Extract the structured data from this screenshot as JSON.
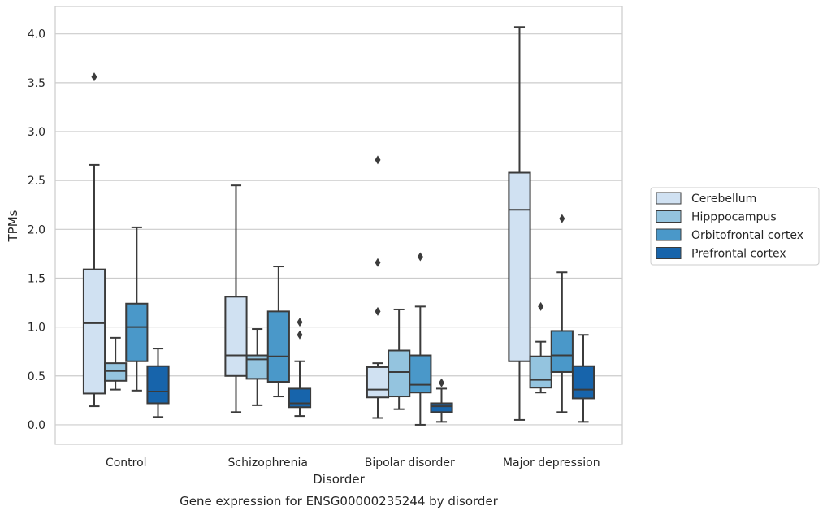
{
  "chart_data": {
    "type": "boxplot",
    "title": "",
    "caption": "Gene expression for ENSG00000235244 by disorder",
    "xlabel": "Disorder",
    "ylabel": "TPMs",
    "ylim": [
      -0.2,
      4.28
    ],
    "yticks": [
      "0.0",
      "0.5",
      "1.0",
      "1.5",
      "2.0",
      "2.5",
      "3.0",
      "3.5",
      "4.0"
    ],
    "categories": [
      "Control",
      "Schizophrenia",
      "Bipolar disorder",
      "Major depression"
    ],
    "grid": "horizontal",
    "legend_position": "right",
    "series": [
      {
        "name": "Cerebellum",
        "color": "#d0e1f2",
        "boxes": [
          {
            "whislo": 0.19,
            "q1": 0.32,
            "med": 1.04,
            "q3": 1.59,
            "whishi": 2.66,
            "fliers": [
              3.56
            ]
          },
          {
            "whislo": 0.13,
            "q1": 0.5,
            "med": 0.71,
            "q3": 1.31,
            "whishi": 2.45,
            "fliers": []
          },
          {
            "whislo": 0.07,
            "q1": 0.28,
            "med": 0.36,
            "q3": 0.59,
            "whishi": 0.63,
            "fliers": [
              1.16,
              1.66,
              2.71
            ]
          },
          {
            "whislo": 0.05,
            "q1": 0.65,
            "med": 2.2,
            "q3": 2.58,
            "whishi": 4.07,
            "fliers": []
          }
        ]
      },
      {
        "name": "Hipppocampus",
        "color": "#94c4df",
        "boxes": [
          {
            "whislo": 0.36,
            "q1": 0.45,
            "med": 0.55,
            "q3": 0.63,
            "whishi": 0.89,
            "fliers": []
          },
          {
            "whislo": 0.2,
            "q1": 0.47,
            "med": 0.67,
            "q3": 0.71,
            "whishi": 0.98,
            "fliers": []
          },
          {
            "whislo": 0.16,
            "q1": 0.29,
            "med": 0.54,
            "q3": 0.76,
            "whishi": 1.18,
            "fliers": []
          },
          {
            "whislo": 0.33,
            "q1": 0.38,
            "med": 0.46,
            "q3": 0.7,
            "whishi": 0.85,
            "fliers": [
              1.21
            ]
          }
        ]
      },
      {
        "name": "Orbitofrontal cortex",
        "color": "#4a98c9",
        "boxes": [
          {
            "whislo": 0.35,
            "q1": 0.65,
            "med": 1.0,
            "q3": 1.24,
            "whishi": 2.02,
            "fliers": []
          },
          {
            "whislo": 0.29,
            "q1": 0.44,
            "med": 0.7,
            "q3": 1.16,
            "whishi": 1.62,
            "fliers": []
          },
          {
            "whislo": 0.0,
            "q1": 0.33,
            "med": 0.41,
            "q3": 0.71,
            "whishi": 1.21,
            "fliers": [
              1.72
            ]
          },
          {
            "whislo": 0.13,
            "q1": 0.54,
            "med": 0.71,
            "q3": 0.96,
            "whishi": 1.56,
            "fliers": [
              2.11
            ]
          }
        ]
      },
      {
        "name": "Prefrontal cortex",
        "color": "#1764ab",
        "boxes": [
          {
            "whislo": 0.08,
            "q1": 0.22,
            "med": 0.34,
            "q3": 0.6,
            "whishi": 0.78,
            "fliers": []
          },
          {
            "whislo": 0.09,
            "q1": 0.18,
            "med": 0.22,
            "q3": 0.37,
            "whishi": 0.65,
            "fliers": [
              0.92,
              1.05
            ]
          },
          {
            "whislo": 0.03,
            "q1": 0.13,
            "med": 0.19,
            "q3": 0.22,
            "whishi": 0.37,
            "fliers": [
              0.43
            ]
          },
          {
            "whislo": 0.03,
            "q1": 0.27,
            "med": 0.36,
            "q3": 0.6,
            "whishi": 0.92,
            "fliers": []
          }
        ]
      }
    ]
  }
}
